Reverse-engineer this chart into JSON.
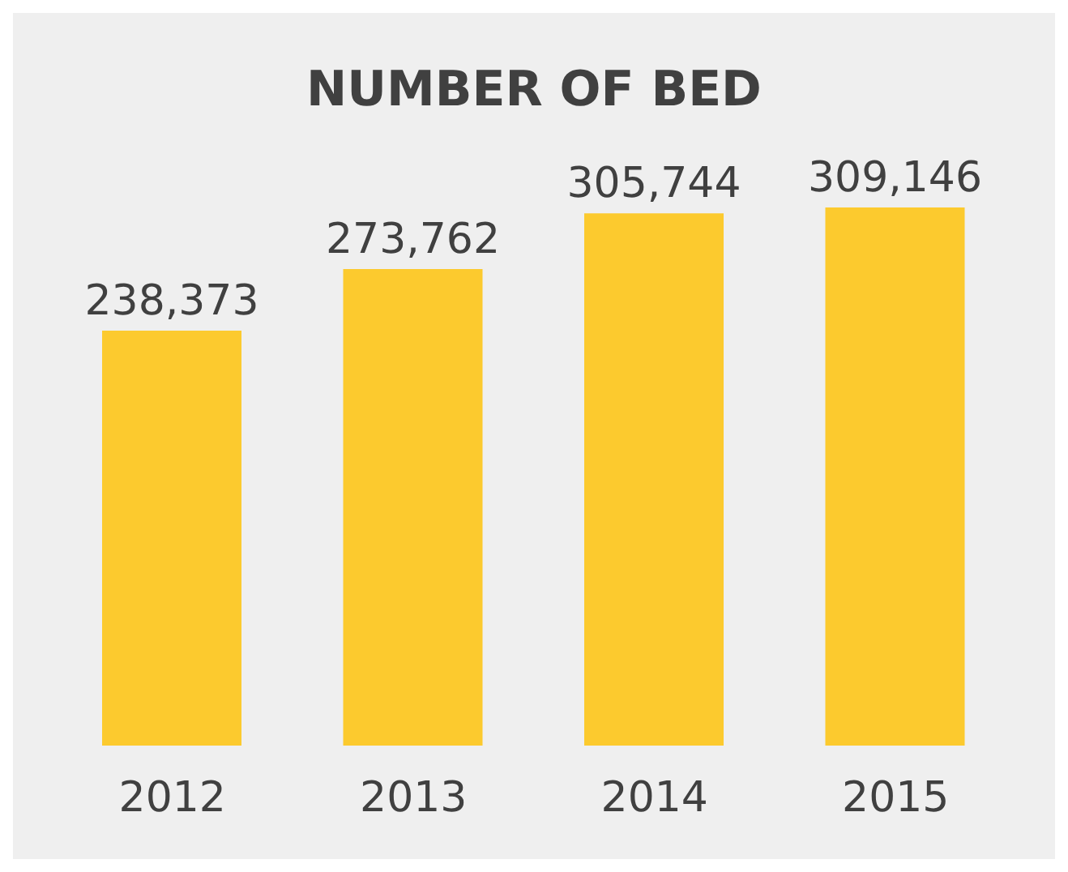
{
  "chart_data": {
    "type": "bar",
    "title": "NUMBER OF BED",
    "categories": [
      "2012",
      "2013",
      "2014",
      "2015"
    ],
    "values": [
      238373,
      273762,
      305744,
      309146
    ],
    "value_labels": [
      "238,373",
      "273,762",
      "305,744",
      "309,146"
    ],
    "color": "#fcca2e",
    "grid": false,
    "legend": false
  }
}
